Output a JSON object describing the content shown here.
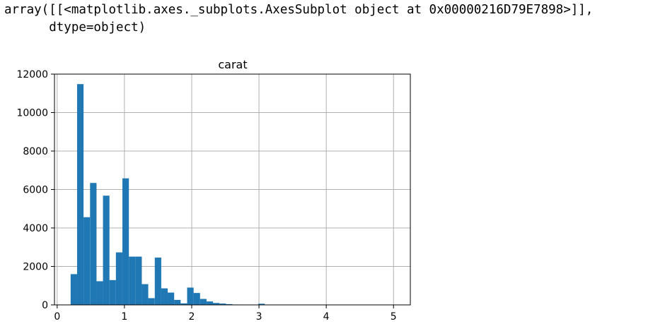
{
  "output": {
    "line1": "array([[<matplotlib.axes._subplots.AxesSubplot object at 0x00000216D79E7898>]],",
    "line2": "      dtype=object)"
  },
  "chart_data": {
    "type": "bar",
    "title": "carat",
    "xlabel": "",
    "ylabel": "",
    "xlim": [
      -0.04,
      5.25
    ],
    "ylim": [
      0,
      12000
    ],
    "grid": true,
    "bar_color": "#1f77b4",
    "bin_width": 0.0962,
    "x_ticks": [
      0,
      1,
      2,
      3,
      4,
      5
    ],
    "x_tick_labels": [
      "0",
      "1",
      "2",
      "3",
      "4",
      "5"
    ],
    "y_ticks": [
      0,
      2000,
      4000,
      6000,
      8000,
      10000,
      12000
    ],
    "y_tick_labels": [
      "0",
      "2000",
      "4000",
      "6000",
      "8000",
      "10000",
      "12000"
    ],
    "bin_starts": [
      0.2,
      0.296,
      0.392,
      0.489,
      0.585,
      0.681,
      0.777,
      0.873,
      0.97,
      1.066,
      1.162,
      1.258,
      1.354,
      1.451,
      1.547,
      1.643,
      1.739,
      1.835,
      1.932,
      2.028,
      2.124,
      2.22,
      2.316,
      2.413,
      2.509,
      2.605,
      2.701,
      2.797,
      2.894,
      2.99,
      3.086,
      3.182,
      3.278,
      3.375,
      3.471,
      3.567,
      3.663,
      3.759,
      3.856,
      3.952,
      4.048,
      4.144,
      4.24,
      4.337,
      4.433,
      4.529,
      4.625,
      4.721,
      4.818,
      4.914
    ],
    "values": [
      1600,
      11480,
      4560,
      6340,
      1230,
      5680,
      1290,
      2730,
      6580,
      2510,
      2510,
      1080,
      350,
      2460,
      860,
      640,
      260,
      80,
      900,
      620,
      310,
      180,
      100,
      70,
      40,
      20,
      10,
      5,
      5,
      60,
      15,
      5,
      3,
      2,
      2,
      2,
      1,
      1,
      1,
      1,
      2,
      1,
      1,
      0,
      0,
      0,
      0,
      0,
      0,
      1
    ]
  }
}
